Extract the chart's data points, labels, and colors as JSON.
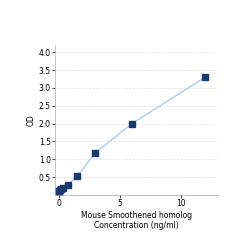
{
  "x_data": [
    0,
    0.047,
    0.094,
    0.188,
    0.375,
    0.75,
    1.5,
    3,
    6,
    12
  ],
  "y_data": [
    0.105,
    0.118,
    0.132,
    0.155,
    0.195,
    0.27,
    0.52,
    1.18,
    2.0,
    3.3
  ],
  "xlabel_line1": "Mouse Smoothened homolog",
  "xlabel_line2": "Concentration (ng/ml)",
  "ylabel": "OD",
  "xlim": [
    -0.3,
    13
  ],
  "ylim": [
    0,
    4.2
  ],
  "yticks": [
    0.5,
    1.0,
    1.5,
    2.0,
    2.5,
    3.0,
    3.5,
    4.0
  ],
  "xticks": [
    0,
    5,
    10
  ],
  "line_color": "#aaccee",
  "marker_color": "#1a3a6e",
  "marker_size": 4,
  "grid_color": "#dddddd",
  "bg_color": "#ffffff",
  "tick_label_fontsize": 5.5,
  "axis_label_fontsize": 5.5
}
